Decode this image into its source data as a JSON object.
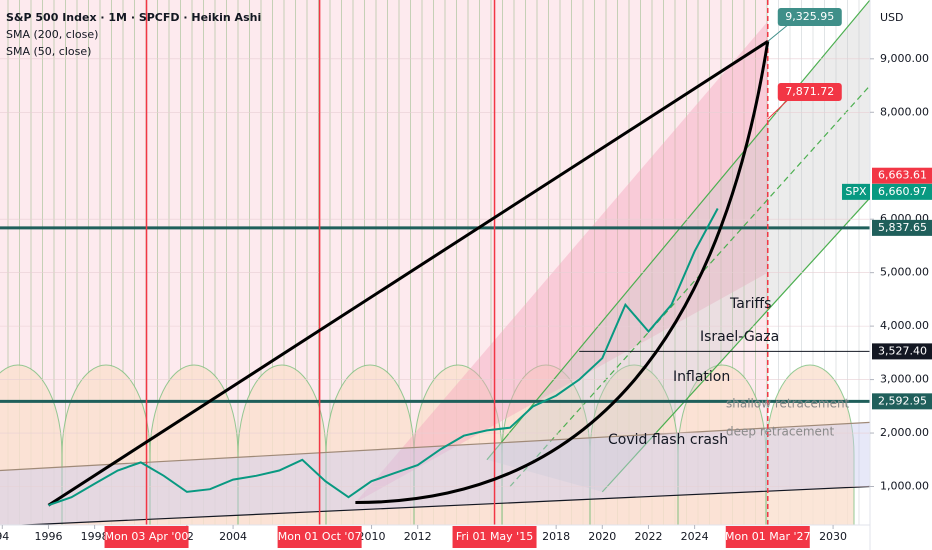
{
  "chart_data": {
    "type": "line",
    "title": "S&P 500 Index · 1M · SPCFD · Heikin Ashi",
    "indicators": [
      "SMA (200, close)",
      "SMA (50, close)"
    ],
    "currency": "USD",
    "x": [
      1996,
      1997,
      1998,
      1999,
      2000,
      2001,
      2002,
      2003,
      2004,
      2005,
      2006,
      2007,
      2008,
      2009,
      2010,
      2011,
      2012,
      2013,
      2014,
      2015,
      2016,
      2017,
      2018,
      2019,
      2020,
      2021,
      2022,
      2023,
      2024,
      2025
    ],
    "series": [
      {
        "name": "SPX",
        "color": "#089981",
        "values": [
          650,
          800,
          1050,
          1300,
          1450,
          1200,
          900,
          950,
          1130,
          1200,
          1300,
          1500,
          1100,
          800,
          1100,
          1250,
          1400,
          1700,
          1950,
          2050,
          2100,
          2500,
          2700,
          3000,
          3400,
          4400,
          3900,
          4400,
          5400,
          6200
        ]
      }
    ],
    "xlim": [
      1993.9,
      2031.6
    ],
    "xticks": [
      {
        "value": 1994,
        "label": "94"
      },
      1996,
      1998,
      {
        "value": 2002,
        "label": "02"
      },
      2004,
      2010,
      2012,
      2018,
      2020,
      2022,
      2024,
      2030
    ],
    "ylim": [
      280,
      10100
    ],
    "yticks": [
      {
        "value": 1000,
        "label": "1,000.00"
      },
      {
        "value": 2000,
        "label": "2,000.00"
      },
      {
        "value": 3000,
        "label": "3,000.00"
      },
      {
        "value": 4000,
        "label": "4,000.00"
      },
      {
        "value": 5000,
        "label": "5,000.00"
      },
      {
        "value": 6000,
        "label": "6,000.00"
      },
      {
        "value": 8000,
        "label": "8,000.00"
      },
      {
        "value": 9000,
        "label": "9,000.00"
      }
    ],
    "callouts": [
      {
        "value": 9325.95,
        "label": "9,325.95",
        "color": "#3f8f89"
      },
      {
        "value": 7871.72,
        "label": "7,871.72",
        "color": "#f23645"
      }
    ],
    "axis_labels": [
      {
        "value": 6663.61,
        "label": "6,663.61",
        "color": "#f23645",
        "line": false
      },
      {
        "value": 6660.97,
        "label": "6,660.97",
        "color": "#089981",
        "line": false
      },
      {
        "value": 5837.65,
        "label": "5,837.65",
        "color": "#1f5f5b",
        "line": true
      },
      {
        "value": 3527.4,
        "label": "3,527.40",
        "color": "#131722",
        "line": true
      },
      {
        "value": 2592.95,
        "label": "2,592.95",
        "color": "#1f5f5b",
        "line": true
      }
    ],
    "date_markers": [
      {
        "value": 2000.25,
        "label": "Mon 03 Apr '00"
      },
      {
        "value": 2007.75,
        "label": "Mon 01 Oct '07"
      },
      {
        "value": 2015.33,
        "label": "Fri 01 May '15"
      },
      {
        "value": 2027.17,
        "label": "Mon 01 Mar '27"
      }
    ],
    "annotations": [
      "Tariffs",
      "Israel-Gaza",
      "Inflation",
      "Covid flash crash",
      "shallow retracement",
      "deep retracement"
    ]
  }
}
